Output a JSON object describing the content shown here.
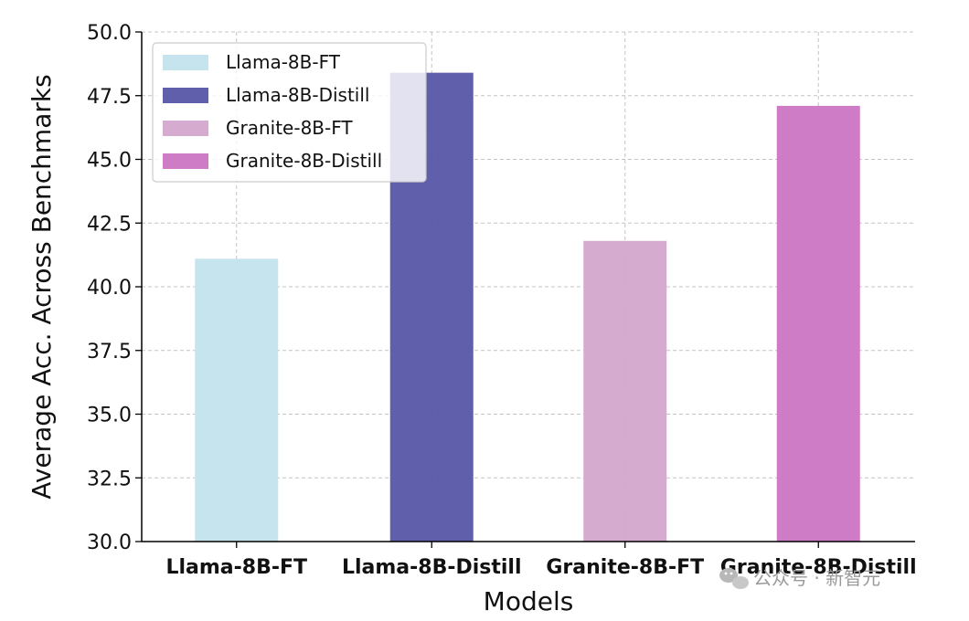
{
  "chart_data": {
    "type": "bar",
    "categories": [
      "Llama-8B-FT",
      "Llama-8B-Distill",
      "Granite-8B-FT",
      "Granite-8B-Distill"
    ],
    "values": [
      41.1,
      48.4,
      41.8,
      47.1
    ],
    "colors": [
      "#c3e3ec",
      "#5656a8",
      "#d4a6cd",
      "#cb75c3"
    ],
    "xlabel": "Models",
    "ylabel": "Average Acc. Across Benchmarks",
    "ylim": [
      30.0,
      50.0
    ],
    "yticks": [
      "30.0",
      "32.5",
      "35.0",
      "37.5",
      "40.0",
      "42.5",
      "45.0",
      "47.5",
      "50.0"
    ],
    "grid": true,
    "legend": {
      "placement": "top-left",
      "entries": [
        "Llama-8B-FT",
        "Llama-8B-Distill",
        "Granite-8B-FT",
        "Granite-8B-Distill"
      ]
    }
  },
  "watermark": {
    "text": "公众号 · 新智元",
    "icon": "wechat-icon"
  }
}
